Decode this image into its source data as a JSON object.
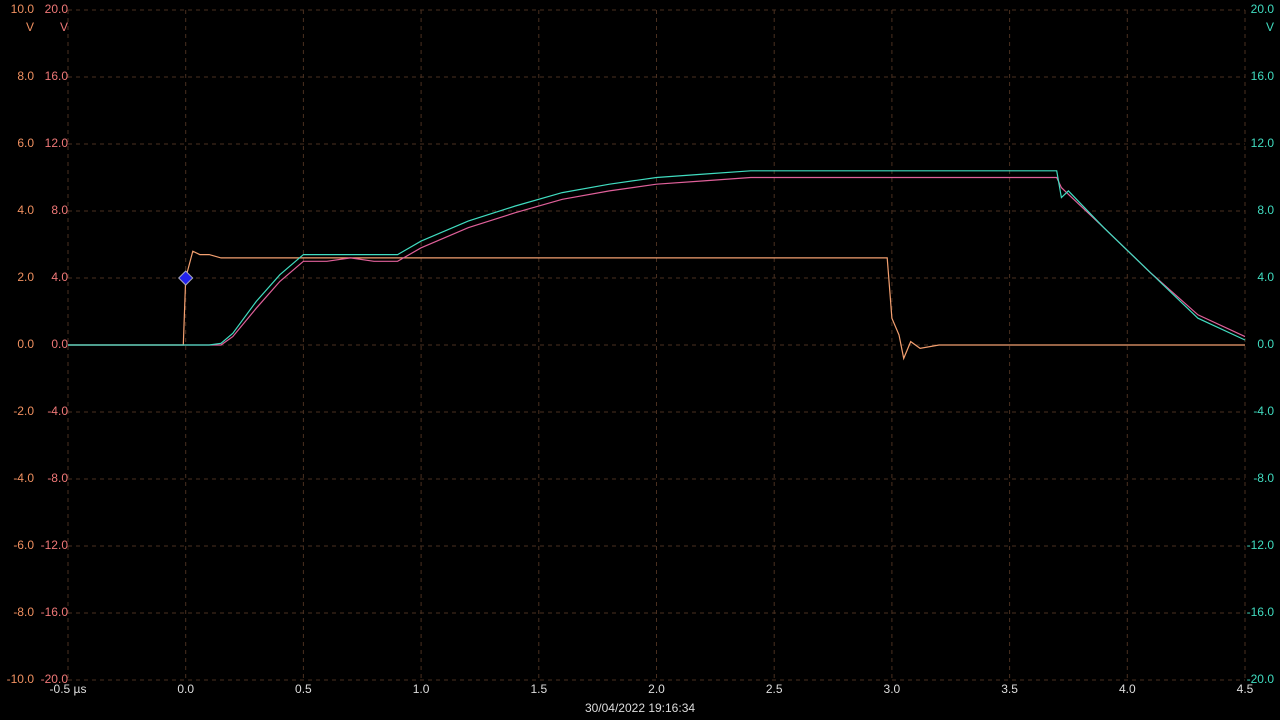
{
  "chart_data": {
    "type": "line",
    "timestamp": "30/04/2022 19:16:34",
    "y_unit": "V",
    "y3_unit": "V",
    "y2_unit": "V",
    "grid": true,
    "x": [
      -0.5,
      -0.01,
      0.0,
      0.03,
      0.06,
      0.1,
      0.15,
      0.2,
      0.3,
      0.4,
      0.5,
      0.6,
      0.7,
      0.8,
      0.9,
      1.0,
      1.2,
      1.4,
      1.6,
      1.8,
      2.0,
      2.2,
      2.4,
      2.6,
      2.8,
      2.98,
      3.0,
      3.03,
      3.05,
      3.08,
      3.12,
      3.2,
      3.5,
      3.7,
      3.72,
      3.75,
      3.9,
      4.1,
      4.3,
      4.5
    ],
    "xlim": [
      -0.5,
      4.5
    ],
    "xticks": [
      {
        "value": -0.5,
        "label": "-0.5 µs"
      },
      {
        "value": 0,
        "label": "0.0"
      },
      0.5,
      {
        "value": 1,
        "label": "1.0"
      },
      1.5,
      {
        "value": 2,
        "label": "2.0"
      },
      2.5,
      {
        "value": 3,
        "label": "3.0"
      },
      3.5,
      {
        "value": 4,
        "label": "4.0"
      },
      4.5
    ],
    "ylim": [
      -10,
      10
    ],
    "yticks": [
      {
        "value": 10,
        "label": "10.0"
      },
      {
        "value": 8,
        "label": "8.0"
      },
      {
        "value": 6,
        "label": "6.0"
      },
      {
        "value": 4,
        "label": "4.0"
      },
      {
        "value": 2,
        "label": "2.0"
      },
      {
        "value": 0,
        "label": "0.0"
      },
      {
        "value": -2,
        "label": "-2.0"
      },
      {
        "value": -4,
        "label": "-4.0"
      },
      {
        "value": -6,
        "label": "-6.0"
      },
      {
        "value": -8,
        "label": "-8.0"
      },
      {
        "value": -10,
        "label": "-10.0"
      }
    ],
    "y3lim": [
      -20,
      20
    ],
    "y3ticks": [
      {
        "value": 20,
        "label": "20.0"
      },
      {
        "value": 16,
        "label": "16.0"
      },
      {
        "value": 12,
        "label": "12.0"
      },
      {
        "value": 8,
        "label": "8.0"
      },
      {
        "value": 4,
        "label": "4.0"
      },
      {
        "value": 0,
        "label": "0.0"
      },
      {
        "value": -4,
        "label": "-4.0"
      },
      {
        "value": -8,
        "label": "-8.0"
      },
      {
        "value": -12,
        "label": "-12.0"
      },
      {
        "value": -16,
        "label": "-16.0"
      },
      {
        "value": -20,
        "label": "-20.0"
      }
    ],
    "y2lim": [
      -20,
      20
    ],
    "y2ticks": [
      {
        "value": 20,
        "label": "20.0"
      },
      {
        "value": 16,
        "label": "16.0"
      },
      {
        "value": 12,
        "label": "12.0"
      },
      {
        "value": 8,
        "label": "8.0"
      },
      {
        "value": 4,
        "label": "4.0"
      },
      {
        "value": 0,
        "label": "0.0"
      },
      {
        "value": -4,
        "label": "-4.0"
      },
      {
        "value": -8,
        "label": "-8.0"
      },
      {
        "value": -12,
        "label": "-12.0"
      },
      {
        "value": -16,
        "label": "-16.0"
      },
      {
        "value": -20,
        "label": "-20.0"
      }
    ],
    "trigger_marker": {
      "x": 0,
      "y": 2.0,
      "color": "#2222ee"
    },
    "series": [
      {
        "color": "#f4a070",
        "axis": "y",
        "values": [
          0,
          0,
          2.0,
          2.8,
          2.7,
          2.7,
          2.6,
          2.6,
          2.6,
          2.6,
          2.6,
          2.6,
          2.6,
          2.6,
          2.6,
          2.6,
          2.6,
          2.6,
          2.6,
          2.6,
          2.6,
          2.6,
          2.6,
          2.6,
          2.6,
          2.6,
          0.8,
          0.3,
          -0.4,
          0.1,
          -0.1,
          0,
          0,
          0,
          0,
          0,
          0,
          0,
          0,
          0
        ]
      },
      {
        "color": "#e0609a",
        "axis": "y3",
        "values": [
          0,
          0,
          0,
          0,
          0,
          0,
          0,
          0.5,
          2.2,
          3.8,
          5.0,
          5.0,
          5.2,
          5.0,
          5.0,
          5.8,
          7.0,
          7.9,
          8.7,
          9.2,
          9.6,
          9.8,
          10.0,
          10.0,
          10.0,
          10.0,
          10.0,
          10.0,
          10.0,
          10.0,
          10.0,
          10.0,
          10.0,
          10.0,
          9.4,
          9.0,
          7.0,
          4.3,
          1.8,
          0.5
        ]
      },
      {
        "color": "#40dcc0",
        "axis": "y2",
        "values": [
          0,
          0,
          0,
          0,
          0,
          0,
          0.1,
          0.7,
          2.6,
          4.2,
          5.4,
          5.4,
          5.4,
          5.4,
          5.4,
          6.2,
          7.4,
          8.3,
          9.1,
          9.6,
          10.0,
          10.2,
          10.4,
          10.4,
          10.4,
          10.4,
          10.4,
          10.4,
          10.4,
          10.4,
          10.4,
          10.4,
          10.4,
          10.4,
          8.8,
          9.2,
          7.0,
          4.3,
          1.6,
          0.3
        ]
      }
    ]
  }
}
